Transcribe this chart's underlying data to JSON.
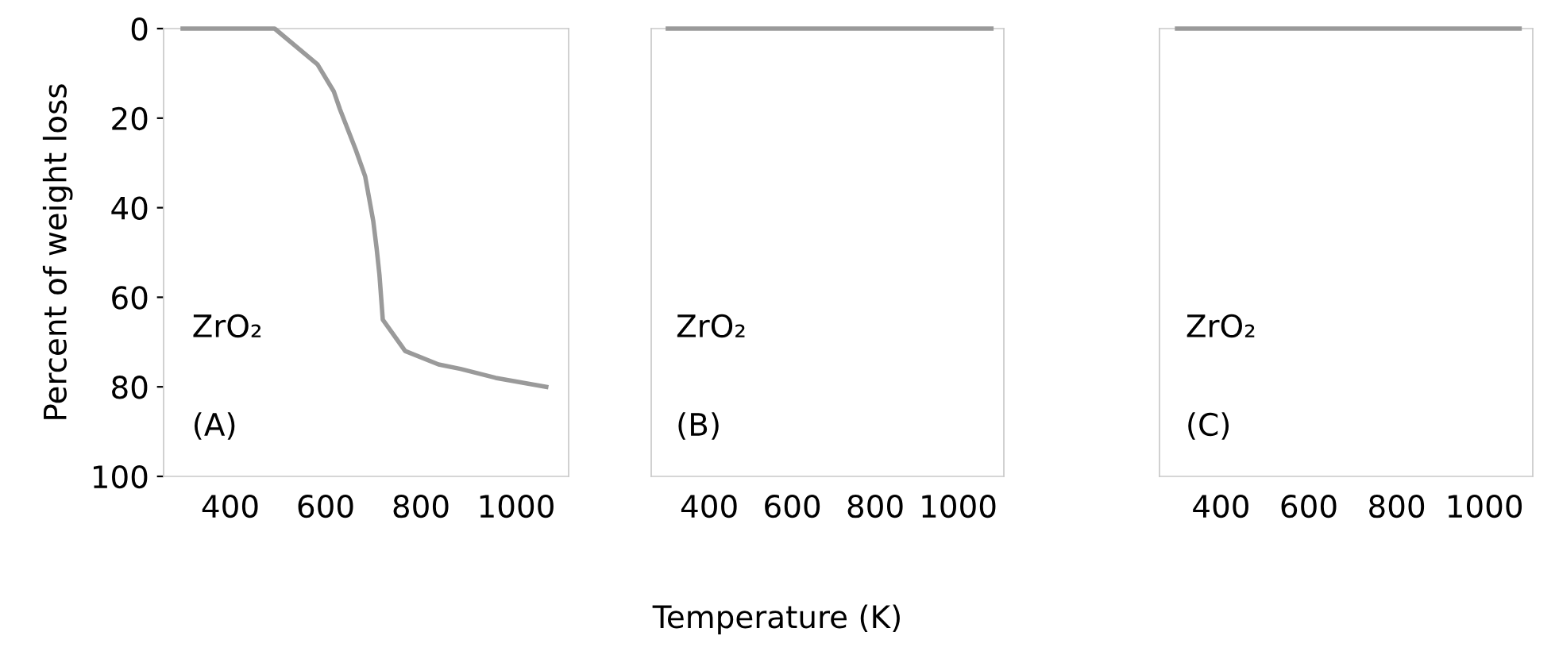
{
  "chart_data": [
    {
      "type": "line",
      "ylabel": "Percent of weight loss",
      "annotations": [
        "ZrO₂",
        "(A)"
      ],
      "xlim": [
        260,
        1110
      ],
      "ylim": [
        100,
        0
      ],
      "xticks": [
        400,
        600,
        800,
        1000
      ],
      "yticks": [
        0,
        20,
        40,
        60,
        80,
        100
      ],
      "grid": false,
      "legend": false,
      "series": [
        {
          "color": "#9a9a9a",
          "x": [
            300,
            493,
            583,
            617,
            630,
            663,
            683,
            700,
            707,
            713,
            720,
            767,
            837,
            883,
            957,
            1063
          ],
          "values": [
            0,
            0,
            8,
            14,
            18,
            27,
            33,
            43,
            49,
            55,
            65,
            72,
            75,
            76,
            78,
            80
          ]
        }
      ]
    },
    {
      "type": "line",
      "xlabel": "Temperature (K)",
      "annotations": [
        "ZrO₂",
        "(B)"
      ],
      "xlim": [
        260,
        1110
      ],
      "ylim": [
        100,
        0
      ],
      "xticks": [
        400,
        600,
        800,
        1000
      ],
      "tick_labels": "x",
      "grid": false,
      "legend": false,
      "series": [
        {
          "color": "#9a9a9a",
          "x": [
            300,
            1080
          ],
          "values": [
            0,
            0
          ]
        }
      ]
    },
    {
      "type": "line",
      "annotations": [
        "ZrO₂",
        "(C)"
      ],
      "xlim": [
        260,
        1110
      ],
      "ylim": [
        100,
        0
      ],
      "xticks": [
        400,
        600,
        800,
        1000
      ],
      "tick_labels": "x",
      "grid": false,
      "legend": false,
      "series": [
        {
          "color": "#9a9a9a",
          "x": [
            300,
            1080
          ],
          "values": [
            0,
            0
          ]
        }
      ]
    }
  ]
}
